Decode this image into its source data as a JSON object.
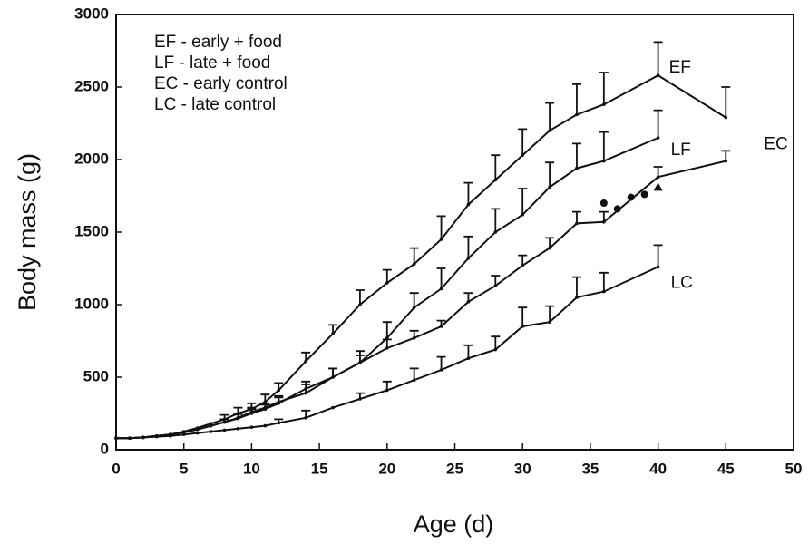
{
  "chart_data": {
    "type": "line",
    "xlabel": "Age (d)",
    "ylabel": "Body mass (g)",
    "xlim": [
      0,
      50
    ],
    "xticks": [
      0,
      5,
      10,
      15,
      20,
      25,
      30,
      35,
      40,
      45,
      50
    ],
    "ylim": [
      0,
      3000
    ],
    "yticks": [
      0,
      500,
      1000,
      1500,
      2000,
      2500,
      3000
    ],
    "color": "#111111",
    "series": [
      {
        "name": "EF - early + food",
        "end_label": "EF",
        "x": [
          0,
          1,
          2,
          3,
          4,
          5,
          6,
          7,
          8,
          9,
          10,
          11,
          12,
          14,
          16,
          18,
          20,
          22,
          24,
          26,
          28,
          30,
          32,
          34,
          36,
          40,
          45
        ],
        "values": [
          80,
          80,
          85,
          95,
          105,
          125,
          150,
          180,
          210,
          250,
          280,
          330,
          410,
          610,
          800,
          1000,
          1150,
          1280,
          1450,
          1690,
          1860,
          2030,
          2200,
          2310,
          2380,
          2580,
          2290
        ],
        "errors": [
          null,
          null,
          null,
          null,
          null,
          null,
          null,
          null,
          30,
          40,
          40,
          50,
          50,
          60,
          60,
          100,
          90,
          110,
          160,
          150,
          170,
          180,
          190,
          210,
          220,
          230,
          210
        ]
      },
      {
        "name": "LF - late + food",
        "end_label": "LF",
        "x": [
          0,
          1,
          2,
          3,
          4,
          5,
          6,
          7,
          8,
          9,
          10,
          11,
          12,
          14,
          16,
          18,
          20,
          22,
          24,
          26,
          28,
          30,
          32,
          34,
          36,
          40
        ],
        "values": [
          80,
          80,
          85,
          95,
          105,
          120,
          140,
          165,
          190,
          215,
          250,
          280,
          320,
          420,
          500,
          600,
          770,
          980,
          1110,
          1320,
          1500,
          1620,
          1810,
          1940,
          1990,
          2150
        ],
        "errors": [
          null,
          null,
          null,
          null,
          null,
          null,
          null,
          null,
          20,
          30,
          30,
          30,
          40,
          50,
          60,
          50,
          110,
          100,
          140,
          150,
          160,
          180,
          170,
          170,
          200,
          190
        ]
      },
      {
        "name": "EC - early control",
        "end_label": "EC",
        "x": [
          0,
          1,
          2,
          3,
          4,
          5,
          6,
          7,
          8,
          9,
          10,
          11,
          12,
          14,
          16,
          18,
          20,
          22,
          24,
          26,
          28,
          30,
          32,
          34,
          36,
          40,
          45
        ],
        "values": [
          80,
          80,
          85,
          95,
          105,
          120,
          140,
          165,
          190,
          220,
          260,
          290,
          330,
          390,
          500,
          600,
          700,
          770,
          850,
          1020,
          1130,
          1270,
          1390,
          1560,
          1570,
          1880,
          1990
        ],
        "errors": [
          null,
          null,
          null,
          null,
          null,
          null,
          null,
          null,
          20,
          30,
          30,
          30,
          40,
          60,
          60,
          80,
          60,
          50,
          40,
          60,
          70,
          70,
          70,
          80,
          70,
          70,
          70
        ]
      },
      {
        "name": "LC - late control",
        "end_label": "LC",
        "x": [
          0,
          1,
          2,
          3,
          4,
          5,
          6,
          7,
          8,
          9,
          10,
          11,
          12,
          14,
          16,
          18,
          20,
          22,
          24,
          26,
          28,
          30,
          32,
          34,
          36,
          40
        ],
        "values": [
          80,
          80,
          85,
          90,
          95,
          105,
          115,
          125,
          135,
          145,
          155,
          165,
          185,
          220,
          290,
          350,
          410,
          480,
          550,
          630,
          690,
          850,
          880,
          1050,
          1090,
          1260
        ],
        "errors": [
          null,
          null,
          null,
          null,
          null,
          null,
          null,
          null,
          null,
          null,
          null,
          null,
          25,
          50,
          null,
          40,
          60,
          80,
          90,
          90,
          90,
          130,
          110,
          140,
          130,
          150
        ]
      }
    ],
    "points": [
      {
        "marker": "circle",
        "x": [
          36,
          37,
          38,
          39
        ],
        "values": [
          1700,
          1660,
          1740,
          1760
        ]
      },
      {
        "marker": "triangle",
        "x": [
          40
        ],
        "values": [
          1810
        ]
      }
    ]
  }
}
